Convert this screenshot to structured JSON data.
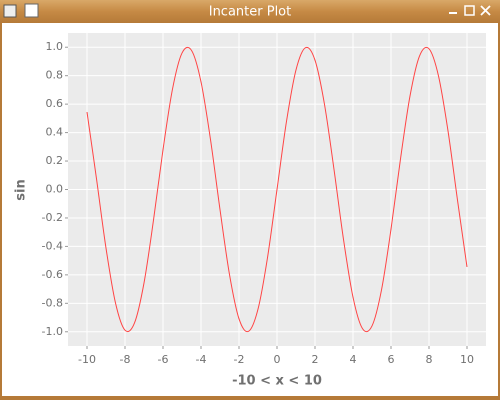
{
  "window": {
    "title": "Incanter Plot"
  },
  "chart_data": {
    "type": "line",
    "xlabel": "-10 < x < 10",
    "ylabel": "sin",
    "x": [
      -10,
      -9.5,
      -9,
      -8.5,
      -8,
      -7.5,
      -7,
      -6.5,
      -6,
      -5.5,
      -5,
      -4.5,
      -4,
      -3.5,
      -3,
      -2.5,
      -2,
      -1.5,
      -1,
      -0.5,
      0,
      0.5,
      1,
      1.5,
      2,
      2.5,
      3,
      3.5,
      4,
      4.5,
      5,
      5.5,
      6,
      6.5,
      7,
      7.5,
      8,
      8.5,
      9,
      9.5,
      10
    ],
    "values": [
      0.544,
      0.075,
      -0.412,
      -0.798,
      -0.989,
      -0.938,
      -0.657,
      -0.215,
      0.279,
      0.706,
      0.959,
      0.978,
      0.757,
      0.351,
      -0.141,
      -0.598,
      -0.909,
      -0.997,
      -0.841,
      -0.479,
      0,
      0.479,
      0.841,
      0.997,
      0.909,
      0.598,
      0.141,
      -0.351,
      -0.757,
      -0.978,
      -0.959,
      -0.706,
      -0.279,
      0.215,
      0.657,
      0.938,
      0.989,
      0.798,
      0.412,
      -0.075,
      -0.544
    ],
    "color": "#ff4444",
    "xlim": [
      -11,
      11
    ],
    "ylim": [
      -1.1,
      1.1
    ],
    "xticks": [
      -10,
      -8,
      -6,
      -4,
      -2,
      0,
      2,
      4,
      6,
      8,
      10
    ],
    "yticks": [
      {
        "value": -1,
        "label": "-1.0"
      },
      -0.8,
      -0.6,
      -0.4,
      -0.2,
      {
        "value": 0,
        "label": "0.0"
      },
      0.2,
      0.4,
      0.6,
      0.8,
      {
        "value": 1,
        "label": "1.0"
      }
    ],
    "grid": true
  }
}
